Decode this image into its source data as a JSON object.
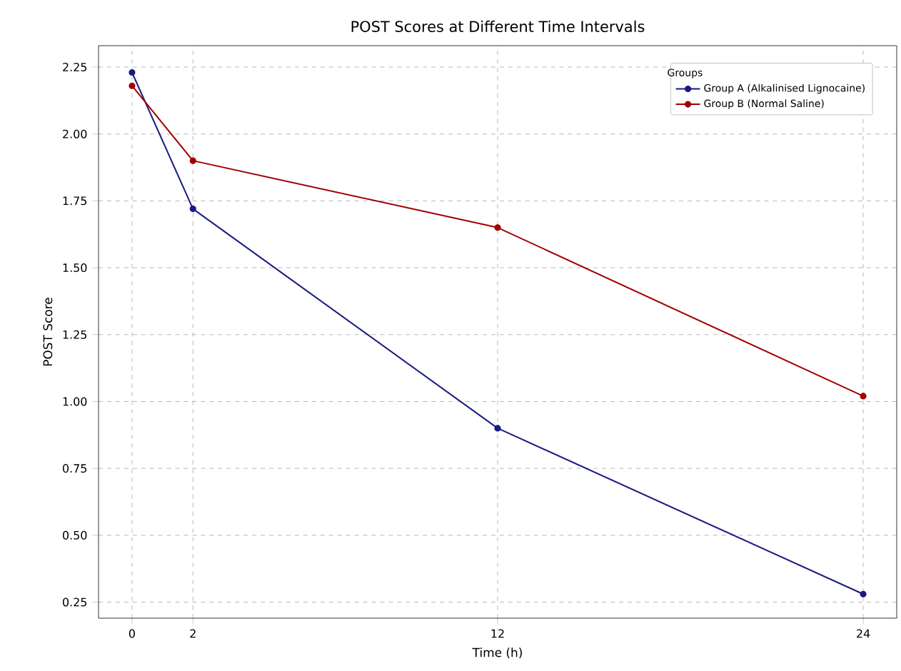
{
  "chart_data": {
    "type": "line",
    "title": "POST Scores at Different Time Intervals",
    "xlabel": "Time (h)",
    "ylabel": "POST Score",
    "legend_title": "Groups",
    "x": [
      0,
      2,
      12,
      24
    ],
    "series": [
      {
        "name": "Group A (Alkalinised Lignocaine)",
        "color": "#1a1a80",
        "values": [
          2.23,
          1.72,
          0.9,
          0.28
        ]
      },
      {
        "name": "Group B (Normal Saline)",
        "color": "#a00000",
        "values": [
          2.18,
          1.9,
          1.65,
          1.02
        ]
      }
    ],
    "xlim": [
      -1.1,
      25.1
    ],
    "ylim": [
      0.19,
      2.33
    ],
    "xticks": [
      0,
      2,
      12,
      24
    ],
    "yticks": [
      {
        "value": 0.25,
        "label": "0.25"
      },
      {
        "value": 0.5,
        "label": "0.50"
      },
      {
        "value": 0.75,
        "label": "0.75"
      },
      {
        "value": 1.0,
        "label": "1.00"
      },
      {
        "value": 1.25,
        "label": "1.25"
      },
      {
        "value": 1.5,
        "label": "1.50"
      },
      {
        "value": 1.75,
        "label": "1.75"
      },
      {
        "value": 2.0,
        "label": "2.00"
      },
      {
        "value": 2.25,
        "label": "2.25"
      }
    ],
    "grid": true,
    "legend": "top right",
    "marker": "circle",
    "line_style": "solid"
  }
}
